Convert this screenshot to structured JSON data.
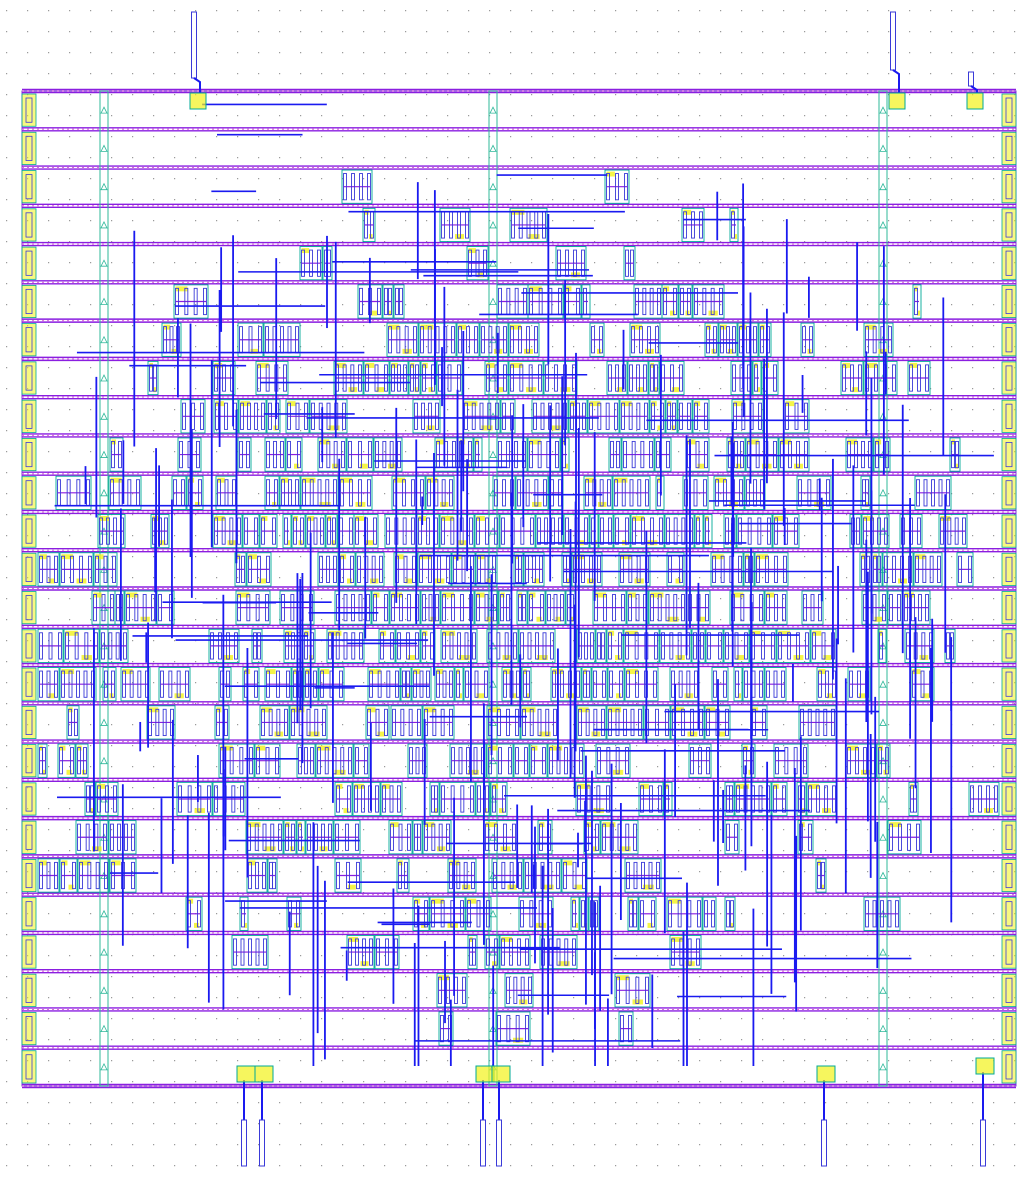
{
  "view": {
    "kind": "ic-layout-viewer",
    "background": "#ffffff",
    "grid_dots": true
  },
  "colors": {
    "grid_dot": "#9a9a9a",
    "power_rail": "#8a1ee0",
    "route_metal": "#1a1af0",
    "cell_outline": "#00a898",
    "diffusion": "#f2f21a",
    "well_tap": "#2fb89a",
    "pin": "#3a3ad8",
    "die_boundary": "#7a3fd6"
  },
  "layout": {
    "rail_rows": 26,
    "tap_columns": 3,
    "top_pins": 3,
    "bottom_pins": 6,
    "design_seed": 1337
  }
}
